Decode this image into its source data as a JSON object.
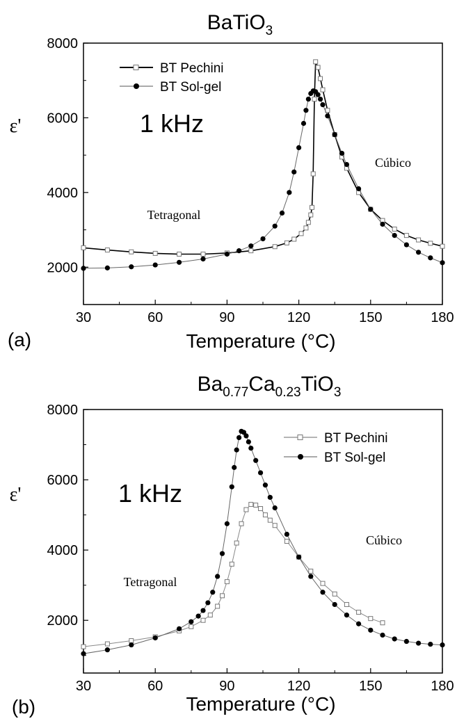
{
  "chart_data": [
    {
      "type": "scatter",
      "title_main": "BaTiO",
      "title_subs": [
        "3"
      ],
      "panel_label": "(a)",
      "xlabel": "Temperature (°C)",
      "ylabel": "ε'",
      "xlim": [
        30,
        180
      ],
      "ylim": [
        1000,
        8000
      ],
      "xticks": [
        30,
        60,
        90,
        120,
        150,
        180
      ],
      "yticks": [
        2000,
        4000,
        6000,
        8000
      ],
      "legend_position": "top-left",
      "annotations": [
        "1 kHz",
        "Tetragonal",
        "Cúbico"
      ],
      "series": [
        {
          "name": "BT Pechini",
          "marker": "open-square",
          "x": [
            30,
            40,
            50,
            60,
            70,
            80,
            90,
            100,
            110,
            115,
            118,
            121,
            123,
            124,
            125,
            125.5,
            126,
            126.5,
            127,
            128,
            129,
            130,
            132,
            135,
            138,
            140,
            145,
            150,
            155,
            160,
            165,
            170,
            175,
            180
          ],
          "y": [
            2520,
            2460,
            2410,
            2370,
            2350,
            2350,
            2380,
            2440,
            2550,
            2650,
            2750,
            2900,
            3050,
            3200,
            3400,
            3600,
            4500,
            6500,
            7500,
            7350,
            7050,
            6750,
            6200,
            5550,
            4950,
            4650,
            4000,
            3550,
            3250,
            3020,
            2850,
            2730,
            2640,
            2560
          ]
        },
        {
          "name": "BT Sol-gel",
          "marker": "filled-circle",
          "x": [
            30,
            40,
            50,
            60,
            70,
            80,
            90,
            95,
            100,
            105,
            110,
            113,
            116,
            118,
            120,
            122,
            123,
            124,
            125,
            126,
            127,
            128,
            129,
            130,
            132,
            135,
            138,
            140,
            145,
            150,
            155,
            160,
            165,
            170,
            175,
            180
          ],
          "y": [
            1970,
            1980,
            2010,
            2060,
            2130,
            2220,
            2350,
            2440,
            2570,
            2760,
            3100,
            3450,
            4000,
            4550,
            5200,
            5850,
            6200,
            6500,
            6650,
            6720,
            6700,
            6620,
            6500,
            6350,
            6050,
            5550,
            5050,
            4750,
            4100,
            3550,
            3150,
            2850,
            2600,
            2400,
            2250,
            2120
          ]
        }
      ]
    },
    {
      "type": "scatter",
      "title_main": "Ba",
      "title_parts": [
        [
          "Ba",
          ""
        ],
        [
          "Ca",
          "0.77"
        ],
        [
          "TiO",
          "0.23"
        ],
        [
          "",
          "3"
        ]
      ],
      "panel_label": "(b)",
      "xlabel": "Temperature (°C)",
      "ylabel": "ε'",
      "xlim": [
        30,
        180
      ],
      "ylim": [
        500,
        8000
      ],
      "xticks": [
        30,
        60,
        90,
        120,
        150,
        180
      ],
      "yticks": [
        2000,
        4000,
        6000,
        8000
      ],
      "legend_position": "top-right",
      "annotations": [
        "1 kHz",
        "Tetragonal",
        "Cúbico"
      ],
      "series": [
        {
          "name": "BT Pechini",
          "marker": "open-square",
          "x": [
            30,
            40,
            50,
            60,
            70,
            75,
            80,
            83,
            86,
            88,
            90,
            92,
            94,
            96,
            98,
            100,
            102,
            104,
            106,
            108,
            110,
            115,
            120,
            125,
            130,
            135,
            140,
            145,
            150,
            155
          ],
          "y": [
            1250,
            1330,
            1420,
            1530,
            1700,
            1820,
            2000,
            2150,
            2400,
            2700,
            3100,
            3600,
            4200,
            4750,
            5150,
            5300,
            5280,
            5180,
            5000,
            4850,
            4700,
            4250,
            3800,
            3400,
            3050,
            2750,
            2450,
            2230,
            2050,
            1930
          ]
        },
        {
          "name": "BT Sol-gel",
          "marker": "filled-circle",
          "x": [
            30,
            40,
            50,
            60,
            70,
            75,
            78,
            80,
            82,
            84,
            86,
            88,
            90,
            92,
            93,
            94,
            95,
            96,
            97,
            98,
            99,
            100,
            102,
            104,
            106,
            108,
            110,
            115,
            120,
            125,
            130,
            135,
            140,
            145,
            150,
            155,
            160,
            165,
            170,
            175,
            180
          ],
          "y": [
            1050,
            1160,
            1300,
            1500,
            1760,
            1960,
            2120,
            2280,
            2500,
            2800,
            3250,
            3900,
            4750,
            5800,
            6350,
            6850,
            7200,
            7380,
            7350,
            7250,
            7080,
            6900,
            6550,
            6200,
            5850,
            5500,
            5200,
            4450,
            3800,
            3250,
            2800,
            2450,
            2150,
            1900,
            1720,
            1580,
            1470,
            1400,
            1350,
            1320,
            1300
          ]
        }
      ]
    }
  ]
}
